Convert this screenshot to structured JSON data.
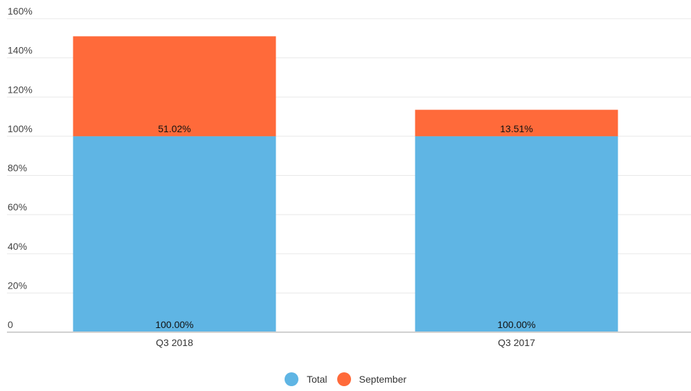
{
  "chart_data": {
    "type": "bar",
    "stacked": true,
    "categories": [
      "Q3 2018",
      "Q3 2017"
    ],
    "series": [
      {
        "name": "Total",
        "color": "#5fb5e4",
        "values": [
          100.0,
          100.0
        ],
        "labels": [
          "100.00%",
          "100.00%"
        ]
      },
      {
        "name": "September",
        "color": "#ff6a3a",
        "values": [
          51.02,
          13.51
        ],
        "labels": [
          "51.02%",
          "13.51%"
        ]
      }
    ],
    "ylim": [
      0,
      160
    ],
    "yticks": [
      {
        "value": 0,
        "label": "0"
      },
      {
        "value": 20,
        "label": "20%"
      },
      {
        "value": 40,
        "label": "40%"
      },
      {
        "value": 60,
        "label": "60%"
      },
      {
        "value": 80,
        "label": "80%"
      },
      {
        "value": 100,
        "label": "100%"
      },
      {
        "value": 120,
        "label": "120%"
      },
      {
        "value": 140,
        "label": "140%"
      },
      {
        "value": 160,
        "label": "160%"
      }
    ],
    "grid": true,
    "legend_position": "bottom-center"
  }
}
